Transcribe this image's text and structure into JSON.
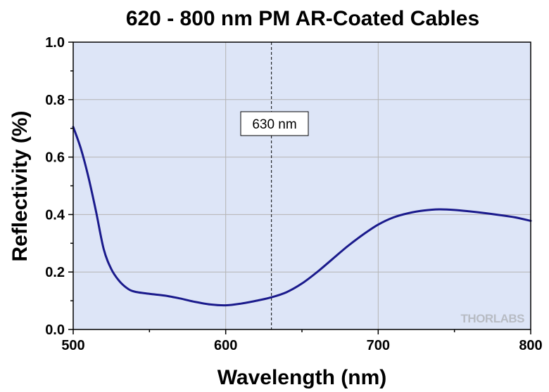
{
  "chart_data": {
    "type": "line",
    "title": "620 - 800 nm PM AR-Coated Cables",
    "xlabel": "Wavelength (nm)",
    "ylabel": "Reflectivity (%)",
    "xlim": [
      500,
      800
    ],
    "ylim": [
      0.0,
      1.0
    ],
    "x_ticks": [
      500,
      600,
      700,
      800
    ],
    "x_tick_labels": [
      "500",
      "600",
      "700",
      "800"
    ],
    "x_minor_step": 50,
    "y_ticks": [
      0.0,
      0.2,
      0.4,
      0.6,
      0.8,
      1.0
    ],
    "y_tick_labels": [
      "0.0",
      "0.2",
      "0.4",
      "0.6",
      "0.8",
      "1.0"
    ],
    "y_minor_step": 0.1,
    "grid": true,
    "colors": {
      "plot_background": "#dde5f7",
      "grid": "#b4b4b4",
      "line": "#1a1a8c"
    },
    "series": [
      {
        "x": [
          500,
          505,
          510,
          515,
          520,
          525,
          530,
          535,
          540,
          550,
          560,
          570,
          580,
          590,
          600,
          610,
          620,
          630,
          640,
          650,
          660,
          670,
          680,
          690,
          700,
          710,
          720,
          730,
          740,
          750,
          760,
          770,
          780,
          790,
          800
        ],
        "y": [
          0.705,
          0.63,
          0.53,
          0.41,
          0.28,
          0.21,
          0.17,
          0.145,
          0.132,
          0.124,
          0.118,
          0.108,
          0.096,
          0.087,
          0.084,
          0.09,
          0.1,
          0.112,
          0.13,
          0.16,
          0.2,
          0.245,
          0.29,
          0.33,
          0.365,
          0.39,
          0.405,
          0.414,
          0.418,
          0.416,
          0.411,
          0.405,
          0.398,
          0.39,
          0.378
        ]
      }
    ],
    "annotations": [
      {
        "type": "vline",
        "x": 630,
        "label": "630 nm",
        "label_y": 0.72
      }
    ]
  },
  "watermark": {
    "text": "THORLABS"
  }
}
